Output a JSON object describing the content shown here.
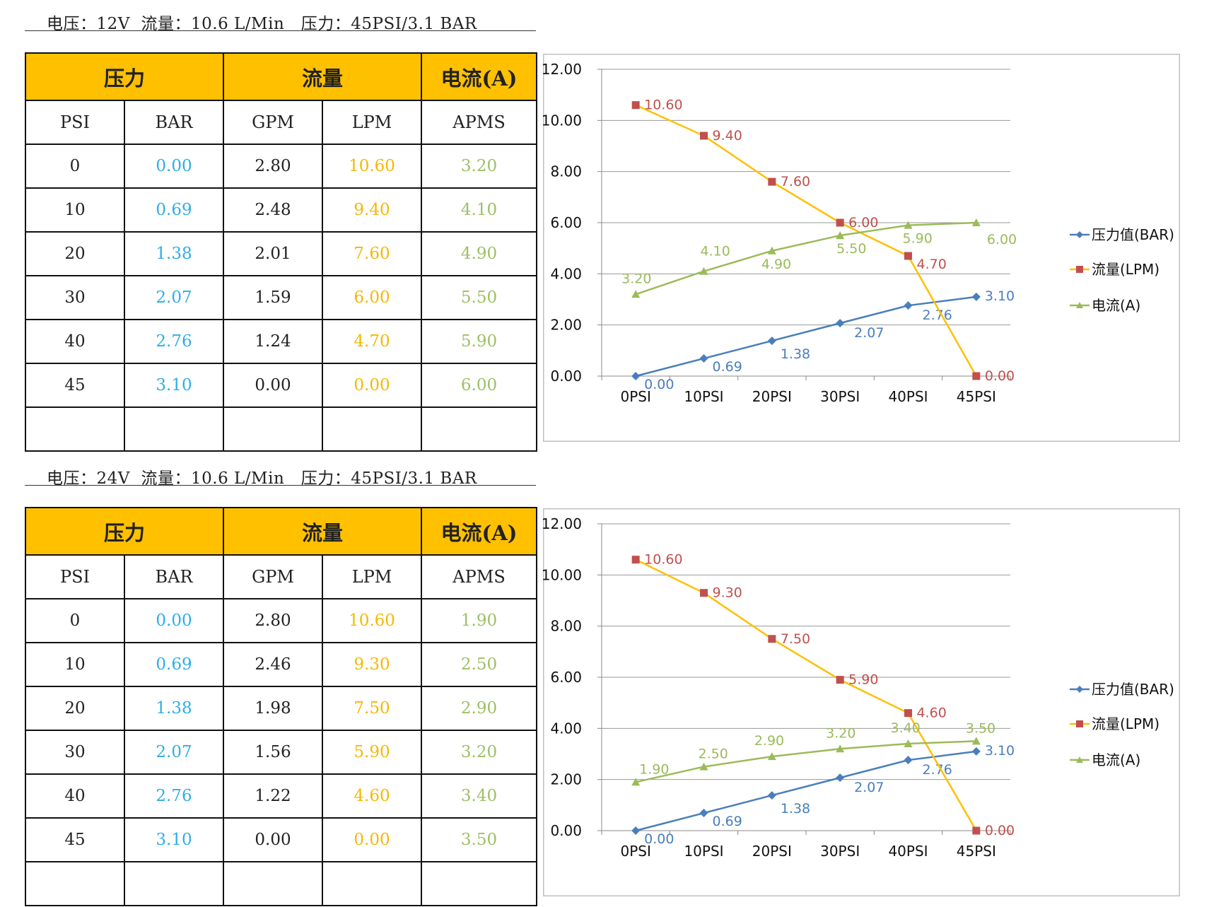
{
  "sections": [
    {
      "title": "电压：12V  流量：10.6 L/Min   压力：45PSI/3.1 BAR",
      "table": {
        "group_headers": [
          "压力",
          "流量",
          "电流(A)"
        ],
        "sub_headers": [
          "PSI",
          "BAR",
          "GPM",
          "LPM",
          "APMS"
        ],
        "rows": [
          [
            "0",
            "0.00",
            "2.80",
            "10.60",
            "3.20"
          ],
          [
            "10",
            "0.69",
            "2.48",
            "9.40",
            "4.10"
          ],
          [
            "20",
            "1.38",
            "2.01",
            "7.60",
            "4.90"
          ],
          [
            "30",
            "2.07",
            "1.59",
            "6.00",
            "5.50"
          ],
          [
            "40",
            "2.76",
            "1.24",
            "4.70",
            "5.90"
          ],
          [
            "45",
            "3.10",
            "0.00",
            "0.00",
            "6.00"
          ],
          [
            "",
            "",
            "",
            "",
            ""
          ]
        ]
      },
      "chart_data": {
        "type": "line",
        "categories": [
          "0PSI",
          "10PSI",
          "20PSI",
          "30PSI",
          "40PSI",
          "45PSI"
        ],
        "ylim": [
          0,
          12
        ],
        "yticks": [
          "0.00",
          "2.00",
          "4.00",
          "6.00",
          "8.00",
          "10.00",
          "12.00"
        ],
        "grid": true,
        "legend_position": "right",
        "series": [
          {
            "name": "压力值(BAR)",
            "color": "#4a7ebb",
            "marker": "diamond",
            "values": [
              0.0,
              0.69,
              1.38,
              2.07,
              2.76,
              3.1
            ],
            "labels": [
              "0.00",
              "0.69",
              "1.38",
              "2.07",
              "2.76",
              "3.10"
            ]
          },
          {
            "name": "流量(LPM)",
            "color": "#ffc000",
            "marker": "square",
            "label_color": "#c0504d",
            "values": [
              10.6,
              9.4,
              7.6,
              6.0,
              4.7,
              0.0
            ],
            "labels": [
              "10.60",
              "9.40",
              "7.60",
              "6.00",
              "4.70",
              "0.00"
            ]
          },
          {
            "name": "电流(A)",
            "color": "#9bbb59",
            "marker": "triangle",
            "values": [
              3.2,
              4.1,
              4.9,
              5.5,
              5.9,
              6.0
            ],
            "labels": [
              "3.20",
              "4.10",
              "4.90",
              "5.50",
              "5.90",
              "6.00"
            ]
          }
        ]
      }
    },
    {
      "title": "电压：24V  流量：10.6 L/Min   压力：45PSI/3.1 BAR",
      "table": {
        "group_headers": [
          "压力",
          "流量",
          "电流(A)"
        ],
        "sub_headers": [
          "PSI",
          "BAR",
          "GPM",
          "LPM",
          "APMS"
        ],
        "rows": [
          [
            "0",
            "0.00",
            "2.80",
            "10.60",
            "1.90"
          ],
          [
            "10",
            "0.69",
            "2.46",
            "9.30",
            "2.50"
          ],
          [
            "20",
            "1.38",
            "1.98",
            "7.50",
            "2.90"
          ],
          [
            "30",
            "2.07",
            "1.56",
            "5.90",
            "3.20"
          ],
          [
            "40",
            "2.76",
            "1.22",
            "4.60",
            "3.40"
          ],
          [
            "45",
            "3.10",
            "0.00",
            "0.00",
            "3.50"
          ],
          [
            "",
            "",
            "",
            "",
            ""
          ]
        ]
      },
      "chart_data": {
        "type": "line",
        "categories": [
          "0PSI",
          "10PSI",
          "20PSI",
          "30PSI",
          "40PSI",
          "45PSI"
        ],
        "ylim": [
          0,
          12
        ],
        "yticks": [
          "0.00",
          "2.00",
          "4.00",
          "6.00",
          "8.00",
          "10.00",
          "12.00"
        ],
        "grid": true,
        "legend_position": "right",
        "series": [
          {
            "name": "压力值(BAR)",
            "color": "#4a7ebb",
            "marker": "diamond",
            "values": [
              0.0,
              0.69,
              1.38,
              2.07,
              2.76,
              3.1
            ],
            "labels": [
              "0.00",
              "0.69",
              "1.38",
              "2.07",
              "2.76",
              "3.10"
            ]
          },
          {
            "name": "流量(LPM)",
            "color": "#ffc000",
            "marker": "square",
            "label_color": "#c0504d",
            "values": [
              10.6,
              9.3,
              7.5,
              5.9,
              4.6,
              0.0
            ],
            "labels": [
              "10.60",
              "9.30",
              "7.50",
              "5.90",
              "4.60",
              "0.00"
            ]
          },
          {
            "name": "电流(A)",
            "color": "#9bbb59",
            "marker": "triangle",
            "values": [
              1.9,
              2.5,
              2.9,
              3.2,
              3.4,
              3.5
            ],
            "labels": [
              "1.90",
              "2.50",
              "2.90",
              "3.20",
              "3.40",
              "3.50"
            ]
          }
        ]
      }
    }
  ],
  "colors": {
    "header_fill": "#ffc000",
    "bar_text": "#2eaee6",
    "lpm_text": "#f5b800",
    "amp_text": "#9dc064"
  }
}
